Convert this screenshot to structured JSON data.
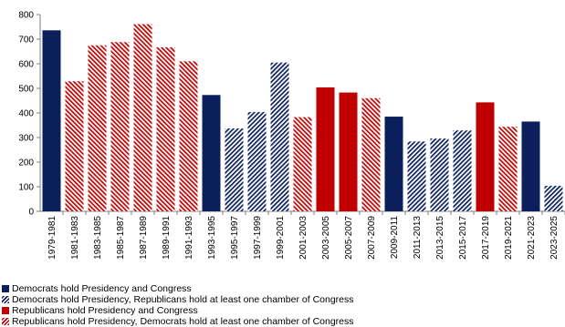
{
  "chart_data": {
    "type": "bar",
    "categories": [
      "1979-1981",
      "1981-1983",
      "1983-1985",
      "1985-1987",
      "1987-1989",
      "1989-1991",
      "1991-1993",
      "1993-1995",
      "1995-1997",
      "1997-1999",
      "1999-2001",
      "2001-2003",
      "2003-2005",
      "2005-2007",
      "2007-2009",
      "2009-2011",
      "2011-2013",
      "2013-2015",
      "2015-2017",
      "2017-2019",
      "2019-2021",
      "2021-2023",
      "2023-2025"
    ],
    "values": [
      736,
      529,
      675,
      688,
      761,
      667,
      610,
      473,
      337,
      404,
      605,
      383,
      504,
      483,
      460,
      385,
      284,
      296,
      329,
      443,
      344,
      365,
      104
    ],
    "groups": [
      "dem_full",
      "rep_split",
      "rep_split",
      "rep_split",
      "rep_split",
      "rep_split",
      "rep_split",
      "dem_full",
      "dem_split",
      "dem_split",
      "dem_split",
      "rep_split",
      "rep_full",
      "rep_full",
      "rep_split",
      "dem_full",
      "dem_split",
      "dem_split",
      "dem_split",
      "rep_full",
      "rep_split",
      "dem_full",
      "dem_split"
    ],
    "ylim": [
      0,
      800
    ],
    "yticks": [
      "0",
      "100",
      "200",
      "300",
      "400",
      "500",
      "600",
      "700",
      "800"
    ],
    "title": "",
    "xlabel": "",
    "ylabel": "",
    "grid": false,
    "legend_position": "bottom",
    "colors": {
      "dem": "#0b1f5c",
      "rep": "#c00000"
    }
  },
  "legend": {
    "items": [
      {
        "key": "dem_full",
        "label": "Democrats hold Presidency and Congress"
      },
      {
        "key": "dem_split",
        "label": "Democrats hold Presidency, Republicans hold at least one chamber of Congress"
      },
      {
        "key": "rep_full",
        "label": "Republicans hold Presidency and Congress"
      },
      {
        "key": "rep_split",
        "label": "Republicans hold Presidency, Democrats hold at least one chamber of Congress"
      }
    ]
  }
}
